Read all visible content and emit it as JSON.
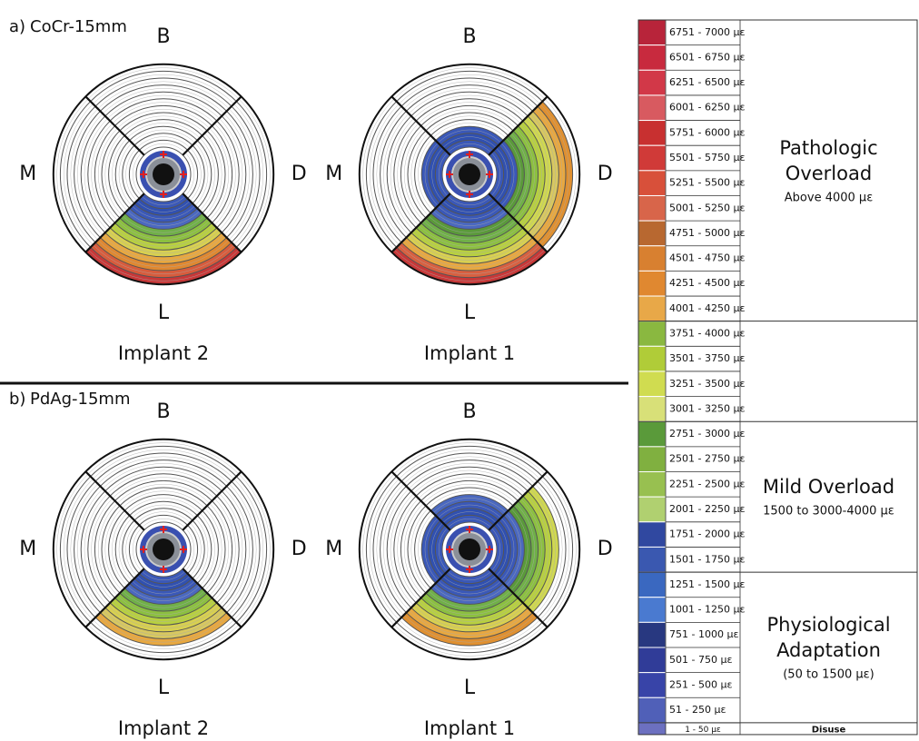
{
  "panels": [
    {
      "label": "a)",
      "title": "CoCr-15mm",
      "implants": [
        {
          "name": "Implant 2",
          "directions": {
            "top": "B",
            "left": "M",
            "right": "D",
            "bottom": "L"
          },
          "rings": {
            "bottom": [
              "#3a58b8",
              "#3050b0",
              "#3a58b8",
              "#4a68c0",
              "#70b048",
              "#8cc040",
              "#b8d040",
              "#d8d050",
              "#e8a840",
              "#e08830",
              "#d85c3c",
              "#c83838"
            ]
          }
        },
        {
          "name": "Implant 1",
          "directions": {
            "top": "B",
            "left": "M",
            "right": "D",
            "bottom": "L"
          },
          "rings": {
            "top": [
              "#3a58b8",
              "#3050b0",
              "#3a58b8"
            ],
            "left": [
              "#3a58b8",
              "#3050b0",
              "#3a58b8"
            ],
            "right": [
              "#3a58b8",
              "#3050b0",
              "#3a58b8",
              "#5a9a3a",
              "#70b048",
              "#8cc040",
              "#b8d040",
              "#d0d850",
              "#d8c860",
              "#e8a840",
              "#e09030"
            ],
            "bottom": [
              "#3a58b8",
              "#3050b0",
              "#3a58b8",
              "#4a68c0",
              "#5a9a3a",
              "#70b048",
              "#8cc040",
              "#b8d040",
              "#d8d050",
              "#e8a840",
              "#d86040",
              "#c83838"
            ]
          }
        }
      ]
    },
    {
      "label": "b)",
      "title": "PdAg-15mm",
      "implants": [
        {
          "name": "Implant 2",
          "directions": {
            "top": "B",
            "left": "M",
            "right": "D",
            "bottom": "L"
          },
          "rings": {
            "bottom": [
              "#3a58b8",
              "#3050b0",
              "#3a58b8",
              "#4a68c0",
              "#70b048",
              "#8cc040",
              "#b8d040",
              "#d8d050",
              "#d8c860",
              "#e8a840"
            ]
          }
        },
        {
          "name": "Implant 1",
          "directions": {
            "top": "B",
            "left": "M",
            "right": "D",
            "bottom": "L"
          },
          "rings": {
            "top": [
              "#3a58b8",
              "#3050b0",
              "#3a58b8",
              "#4a68c0"
            ],
            "left": [
              "#3a58b8",
              "#3050b0",
              "#3a58b8"
            ],
            "right": [
              "#3a58b8",
              "#3050b0",
              "#3a58b8",
              "#4a68c0",
              "#5a9a3a",
              "#70b048",
              "#8cc040",
              "#b8d040",
              "#d0d850"
            ],
            "bottom": [
              "#3a58b8",
              "#3050b0",
              "#3a58b8",
              "#4a68c0",
              "#70b048",
              "#8cc040",
              "#b8d040",
              "#d8d050",
              "#e8a840",
              "#e09030"
            ]
          }
        }
      ]
    }
  ],
  "legend": {
    "rows": [
      {
        "range": "6751 - 7000 με",
        "color": "#b8243a"
      },
      {
        "range": "6501 - 6750 με",
        "color": "#c82a3e"
      },
      {
        "range": "6251 - 6500 με",
        "color": "#d23848"
      },
      {
        "range": "6001 - 6250 με",
        "color": "#d85a60"
      },
      {
        "range": "5751 - 6000 με",
        "color": "#c83030"
      },
      {
        "range": "5501 - 5750 με",
        "color": "#d03a38"
      },
      {
        "range": "5251 - 5500 με",
        "color": "#d8503a"
      },
      {
        "range": "5001 - 5250 με",
        "color": "#d8654a"
      },
      {
        "range": "4751 - 5000 με",
        "color": "#b86830"
      },
      {
        "range": "4501 - 4750 με",
        "color": "#d88030"
      },
      {
        "range": "4251 - 4500 με",
        "color": "#e08830"
      },
      {
        "range": "4001 - 4250 με",
        "color": "#e8a848"
      },
      {
        "range": "3751 - 4000 με",
        "color": "#8ab840"
      },
      {
        "range": "3501 - 3750 με",
        "color": "#b0cc38"
      },
      {
        "range": "3251 - 3500 με",
        "color": "#d0dc50"
      },
      {
        "range": "3001 - 3250 με",
        "color": "#d8e078"
      },
      {
        "range": "2751 - 3000 με",
        "color": "#5a9a3a"
      },
      {
        "range": "2501 - 2750 με",
        "color": "#80b040"
      },
      {
        "range": "2251 - 2500 με",
        "color": "#98c050"
      },
      {
        "range": "2001 - 2250 με",
        "color": "#b0d070"
      },
      {
        "range": "1751 - 2000 με",
        "color": "#3048a0"
      },
      {
        "range": "1501 - 1750 με",
        "color": "#3a58b0"
      },
      {
        "range": "1251 - 1500 με",
        "color": "#3a68c0"
      },
      {
        "range": "1001 - 1250 με",
        "color": "#4a7ad0"
      },
      {
        "range": "751 - 1000 με",
        "color": "#283880"
      },
      {
        "range": "501 - 750 με",
        "color": "#303c98"
      },
      {
        "range": "251 - 500 με",
        "color": "#3844a8"
      },
      {
        "range": "51 - 250 με",
        "color": "#5060b8"
      }
    ],
    "groups": [
      {
        "title": [
          "Pathologic",
          "Overload"
        ],
        "note": "Above 4000 με"
      },
      {
        "title": [
          "Mild Overload"
        ],
        "note": "1500 to 3000-4000 με"
      },
      {
        "title": [
          "Physiological",
          "Adaptation"
        ],
        "note": "(50 to 1500 με)"
      }
    ],
    "disuse": {
      "range": "1 - 50 με",
      "color": "#6c70c0",
      "label": "Disuse"
    }
  }
}
